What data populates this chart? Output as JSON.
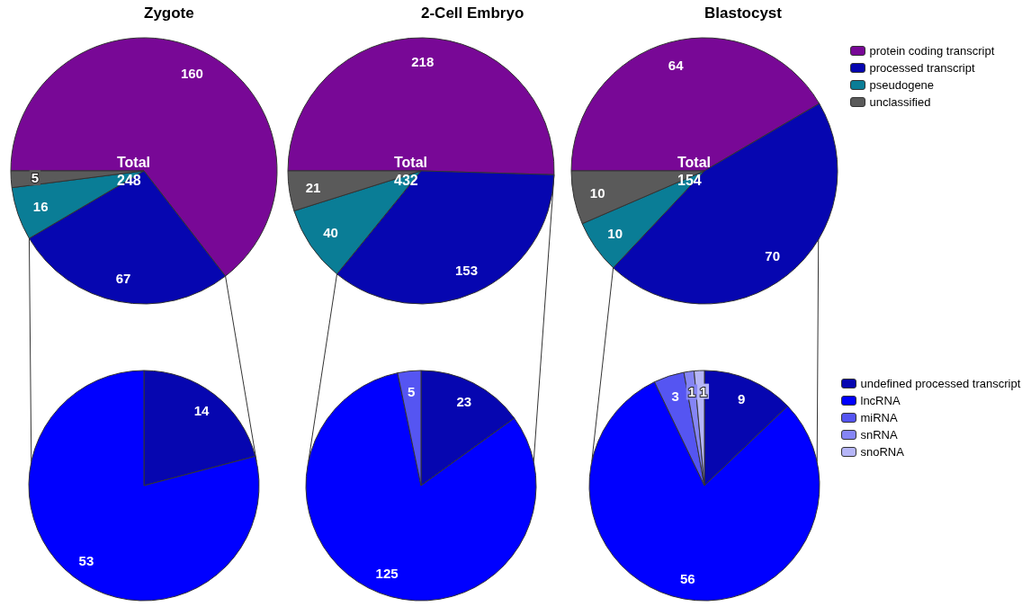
{
  "chart_data": [
    {
      "type": "pie",
      "categories": [
        "protein coding transcript",
        "processed transcript",
        "pseudogene",
        "unclassified"
      ],
      "colors": [
        "#780896",
        "#0606b0",
        "#0a7d96",
        "#5a5a5a"
      ],
      "series": [
        {
          "name": "Zygote",
          "values": [
            160,
            67,
            16,
            5
          ]
        },
        {
          "name": "2-Cell Embryo",
          "values": [
            218,
            153,
            40,
            21
          ]
        },
        {
          "name": "Blastocyst",
          "values": [
            64,
            70,
            10,
            10
          ]
        }
      ],
      "data_labels": true,
      "legend": "top right",
      "annotations": [
        "Total 248",
        "Total 432",
        "Total 154"
      ]
    },
    {
      "type": "pie",
      "categories": [
        "undefined processed transcript",
        "lncRNA",
        "miRNA",
        "snRNA",
        "snoRNA"
      ],
      "colors": [
        "#0606b0",
        "#0000ff",
        "#5555f2",
        "#8585f5",
        "#b5b5f7"
      ],
      "series": [
        {
          "values": [
            14,
            53,
            null,
            null,
            null
          ]
        },
        {
          "values": [
            23,
            125,
            5,
            null,
            null
          ]
        },
        {
          "values": [
            9,
            56,
            3,
            1,
            1
          ]
        }
      ],
      "data_labels": true,
      "legend": "right"
    }
  ]
}
